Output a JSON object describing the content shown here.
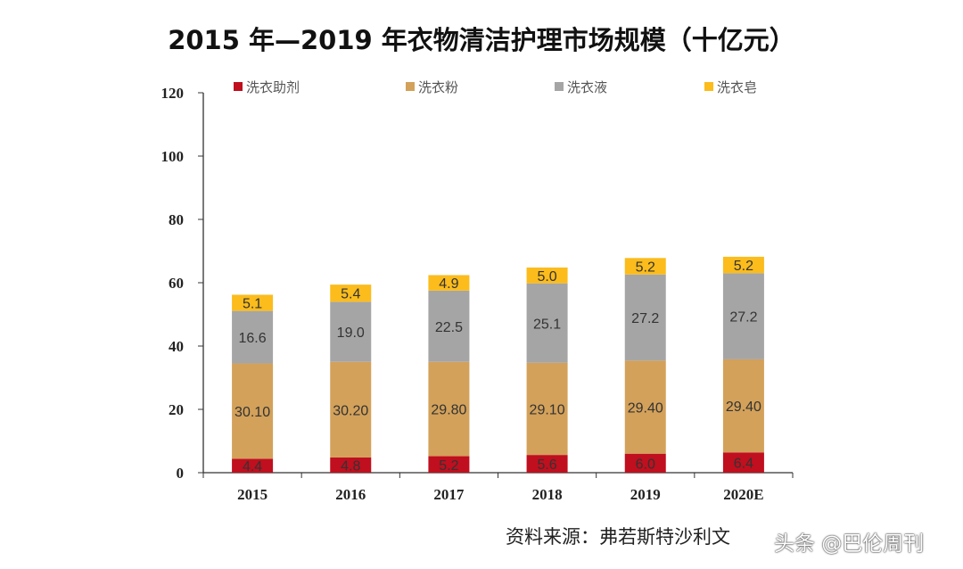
{
  "title": "2015 年—2019 年衣物清洁护理市场规模（十亿元）",
  "source": "资料来源：弗若斯特沙利文",
  "watermark": "头条 @巴伦周刊",
  "chart_data": {
    "type": "bar",
    "stacked": true,
    "title": "2015 年—2019 年衣物清洁护理市场规模（十亿元）",
    "categories": [
      "2015",
      "2016",
      "2017",
      "2018",
      "2019",
      "2020E"
    ],
    "ylim": [
      0,
      120
    ],
    "yticks": [
      0,
      20,
      40,
      60,
      80,
      100,
      120
    ],
    "grid": false,
    "legend": "top",
    "series": [
      {
        "name": "洗衣助剂",
        "color": "#c00f1e",
        "values": [
          4.4,
          4.8,
          5.2,
          5.6,
          6.0,
          6.4
        ],
        "labels": [
          "4.4",
          "4.8",
          "5.2",
          "5.6",
          "6.0",
          "6.4"
        ]
      },
      {
        "name": "洗衣粉",
        "color": "#d3a15a",
        "values": [
          30.1,
          30.2,
          29.8,
          29.1,
          29.4,
          29.4
        ],
        "labels": [
          "30.10",
          "30.20",
          "29.80",
          "29.10",
          "29.40",
          "29.40"
        ]
      },
      {
        "name": "洗衣液",
        "color": "#a5a5a5",
        "values": [
          16.6,
          19.0,
          22.5,
          25.1,
          27.2,
          27.2
        ],
        "labels": [
          "16.6",
          "19.0",
          "22.5",
          "25.1",
          "27.2",
          "27.2"
        ]
      },
      {
        "name": "洗衣皂",
        "color": "#fbbc1c",
        "values": [
          5.1,
          5.4,
          4.9,
          5.0,
          5.2,
          5.2
        ],
        "labels": [
          "5.1",
          "5.4",
          "4.9",
          "5.0",
          "5.2",
          "5.2"
        ]
      }
    ]
  }
}
